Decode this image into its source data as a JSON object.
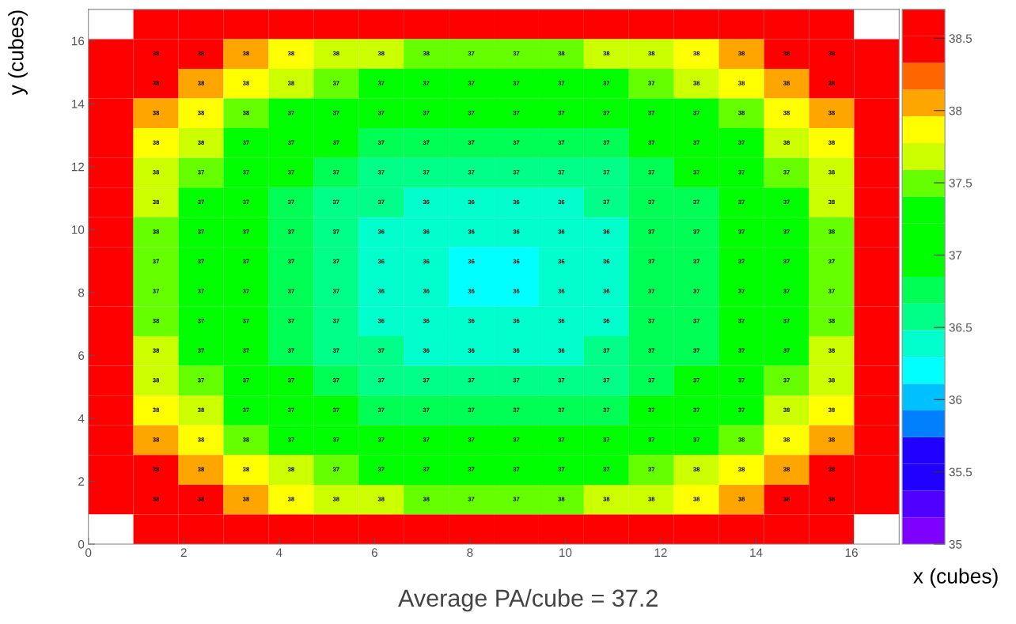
{
  "chart_data": {
    "type": "heatmap",
    "xlabel": "x (cubes)",
    "ylabel": "y (cubes)",
    "annotations": [
      "Average PA/cube = 37.2"
    ],
    "xlim": [
      0,
      17
    ],
    "ylim": [
      0,
      17
    ],
    "xticks": [
      0,
      2,
      4,
      6,
      8,
      10,
      12,
      14,
      16
    ],
    "yticks": [
      0,
      2,
      4,
      6,
      8,
      10,
      12,
      14,
      16
    ],
    "clim": [
      35,
      38.7
    ],
    "cticks": [
      35,
      35.5,
      36,
      36.5,
      37,
      37.5,
      38,
      38.5
    ],
    "cells": [
      [
        null,
        38.6,
        38.6,
        38.6,
        38.6,
        38.6,
        38.6,
        38.6,
        38.6,
        38.6,
        38.6,
        38.6,
        38.6,
        38.6,
        38.6,
        38.6,
        38.6,
        null
      ],
      [
        38.6,
        38.42,
        38.42,
        38.05,
        37.87,
        37.68,
        37.68,
        37.52,
        37.45,
        37.45,
        37.52,
        37.68,
        37.68,
        37.87,
        38.05,
        38.42,
        38.42,
        38.6
      ],
      [
        38.6,
        38.42,
        38.05,
        37.87,
        37.68,
        37.45,
        37.1,
        37.1,
        37.1,
        37.1,
        37.1,
        37.1,
        37.45,
        37.68,
        37.87,
        38.05,
        38.42,
        38.6
      ],
      [
        38.6,
        38.05,
        37.87,
        37.52,
        37.1,
        37.1,
        37.1,
        37.1,
        37.1,
        37.1,
        37.1,
        37.1,
        37.1,
        37.1,
        37.52,
        37.87,
        38.05,
        38.6
      ],
      [
        38.6,
        37.87,
        37.68,
        37.1,
        37.1,
        37.1,
        36.76,
        36.76,
        36.76,
        36.76,
        36.76,
        36.76,
        37.1,
        37.1,
        37.1,
        37.68,
        37.87,
        38.6
      ],
      [
        38.6,
        37.68,
        37.45,
        37.1,
        37.1,
        36.76,
        36.57,
        36.57,
        36.57,
        36.57,
        36.57,
        36.57,
        36.76,
        37.1,
        37.1,
        37.45,
        37.68,
        38.6
      ],
      [
        38.6,
        37.68,
        37.1,
        37.1,
        36.76,
        36.57,
        36.57,
        36.39,
        36.39,
        36.39,
        36.39,
        36.57,
        36.76,
        36.76,
        37.1,
        37.1,
        37.68,
        38.6
      ],
      [
        38.6,
        37.52,
        37.1,
        37.1,
        36.76,
        36.57,
        36.39,
        36.39,
        36.39,
        36.39,
        36.39,
        36.39,
        36.76,
        36.76,
        37.1,
        37.1,
        37.52,
        38.6
      ],
      [
        38.6,
        37.45,
        37.1,
        37.1,
        36.76,
        36.57,
        36.39,
        36.39,
        36.2,
        36.2,
        36.39,
        36.39,
        36.76,
        36.76,
        37.1,
        37.1,
        37.45,
        38.6
      ],
      [
        38.6,
        37.45,
        37.1,
        37.1,
        36.76,
        36.57,
        36.39,
        36.39,
        36.2,
        36.2,
        36.39,
        36.39,
        36.76,
        36.76,
        37.1,
        37.1,
        37.45,
        38.6
      ],
      [
        38.6,
        37.52,
        37.1,
        37.1,
        36.76,
        36.57,
        36.39,
        36.39,
        36.39,
        36.39,
        36.39,
        36.39,
        36.76,
        36.76,
        37.1,
        37.1,
        37.52,
        38.6
      ],
      [
        38.6,
        37.68,
        37.1,
        37.1,
        36.76,
        36.57,
        36.57,
        36.39,
        36.39,
        36.39,
        36.39,
        36.57,
        36.76,
        36.76,
        37.1,
        37.1,
        37.68,
        38.6
      ],
      [
        38.6,
        37.68,
        37.45,
        37.1,
        37.1,
        36.76,
        36.57,
        36.57,
        36.57,
        36.57,
        36.57,
        36.57,
        36.76,
        37.1,
        37.1,
        37.45,
        37.68,
        38.6
      ],
      [
        38.6,
        37.87,
        37.68,
        37.1,
        37.1,
        37.1,
        36.76,
        36.76,
        36.76,
        36.76,
        36.76,
        36.76,
        37.1,
        37.1,
        37.1,
        37.68,
        37.87,
        38.6
      ],
      [
        38.6,
        38.05,
        37.87,
        37.52,
        37.1,
        37.1,
        37.1,
        37.1,
        37.1,
        37.1,
        37.1,
        37.1,
        37.1,
        37.1,
        37.52,
        37.87,
        38.05,
        38.6
      ],
      [
        38.6,
        38.42,
        38.05,
        37.87,
        37.68,
        37.45,
        37.1,
        37.1,
        37.1,
        37.1,
        37.1,
        37.1,
        37.45,
        37.68,
        37.87,
        38.05,
        38.42,
        38.6
      ],
      [
        38.6,
        38.42,
        38.42,
        38.05,
        37.87,
        37.68,
        37.68,
        37.52,
        37.45,
        37.45,
        37.52,
        37.68,
        37.68,
        37.87,
        38.05,
        38.42,
        38.42,
        38.6
      ],
      [
        null,
        38.6,
        38.6,
        38.6,
        38.6,
        38.6,
        38.6,
        38.6,
        38.6,
        38.6,
        38.6,
        38.6,
        38.6,
        38.6,
        38.6,
        38.6,
        38.6,
        null
      ]
    ],
    "cell_labels": [
      [
        null,
        null,
        null,
        null,
        null,
        null,
        null,
        null,
        null,
        null,
        null,
        null,
        null,
        null,
        null,
        null,
        null,
        null
      ],
      [
        null,
        "38",
        "38",
        "38",
        "38",
        "38",
        "38",
        "38",
        "37",
        "37",
        "38",
        "38",
        "38",
        "38",
        "38",
        "38",
        "38",
        null
      ],
      [
        null,
        "38",
        "38",
        "38",
        "38",
        "37",
        "37",
        "37",
        "37",
        "37",
        "37",
        "37",
        "37",
        "38",
        "38",
        "38",
        "38",
        null
      ],
      [
        null,
        "38",
        "38",
        "38",
        "37",
        "37",
        "37",
        "37",
        "37",
        "37",
        "37",
        "37",
        "37",
        "37",
        "38",
        "38",
        "38",
        null
      ],
      [
        null,
        "38",
        "38",
        "37",
        "37",
        "37",
        "37",
        "37",
        "37",
        "37",
        "37",
        "37",
        "37",
        "37",
        "37",
        "38",
        "38",
        null
      ],
      [
        null,
        "38",
        "37",
        "37",
        "37",
        "37",
        "37",
        "37",
        "37",
        "37",
        "37",
        "37",
        "37",
        "37",
        "37",
        "37",
        "38",
        null
      ],
      [
        null,
        "38",
        "37",
        "37",
        "37",
        "37",
        "37",
        "36",
        "36",
        "36",
        "36",
        "37",
        "37",
        "37",
        "37",
        "37",
        "38",
        null
      ],
      [
        null,
        "38",
        "37",
        "37",
        "37",
        "37",
        "36",
        "36",
        "36",
        "36",
        "36",
        "36",
        "37",
        "37",
        "37",
        "37",
        "38",
        null
      ],
      [
        null,
        "37",
        "37",
        "37",
        "37",
        "37",
        "36",
        "36",
        "36",
        "36",
        "36",
        "36",
        "37",
        "37",
        "37",
        "37",
        "37",
        null
      ],
      [
        null,
        "37",
        "37",
        "37",
        "37",
        "37",
        "36",
        "36",
        "36",
        "36",
        "36",
        "36",
        "37",
        "37",
        "37",
        "37",
        "37",
        null
      ],
      [
        null,
        "38",
        "37",
        "37",
        "37",
        "37",
        "36",
        "36",
        "36",
        "36",
        "36",
        "36",
        "37",
        "37",
        "37",
        "37",
        "38",
        null
      ],
      [
        null,
        "38",
        "37",
        "37",
        "37",
        "37",
        "37",
        "36",
        "36",
        "36",
        "36",
        "37",
        "37",
        "37",
        "37",
        "37",
        "38",
        null
      ],
      [
        null,
        "38",
        "37",
        "37",
        "37",
        "37",
        "37",
        "37",
        "37",
        "37",
        "37",
        "37",
        "37",
        "37",
        "37",
        "37",
        "38",
        null
      ],
      [
        null,
        "38",
        "38",
        "37",
        "37",
        "37",
        "37",
        "37",
        "37",
        "37",
        "37",
        "37",
        "37",
        "37",
        "37",
        "38",
        "38",
        null
      ],
      [
        null,
        "38",
        "38",
        "38",
        "37",
        "37",
        "37",
        "37",
        "37",
        "37",
        "37",
        "37",
        "37",
        "37",
        "38",
        "38",
        "38",
        null
      ],
      [
        null,
        "38",
        "38",
        "38",
        "38",
        "37",
        "37",
        "37",
        "37",
        "37",
        "37",
        "37",
        "37",
        "38",
        "38",
        "38",
        "38",
        null
      ],
      [
        null,
        "38",
        "38",
        "38",
        "38",
        "38",
        "38",
        "38",
        "37",
        "37",
        "38",
        "38",
        "38",
        "38",
        "38",
        "38",
        "38",
        null
      ],
      [
        null,
        null,
        null,
        null,
        null,
        null,
        null,
        null,
        null,
        null,
        null,
        null,
        null,
        null,
        null,
        null,
        null,
        null
      ]
    ]
  }
}
